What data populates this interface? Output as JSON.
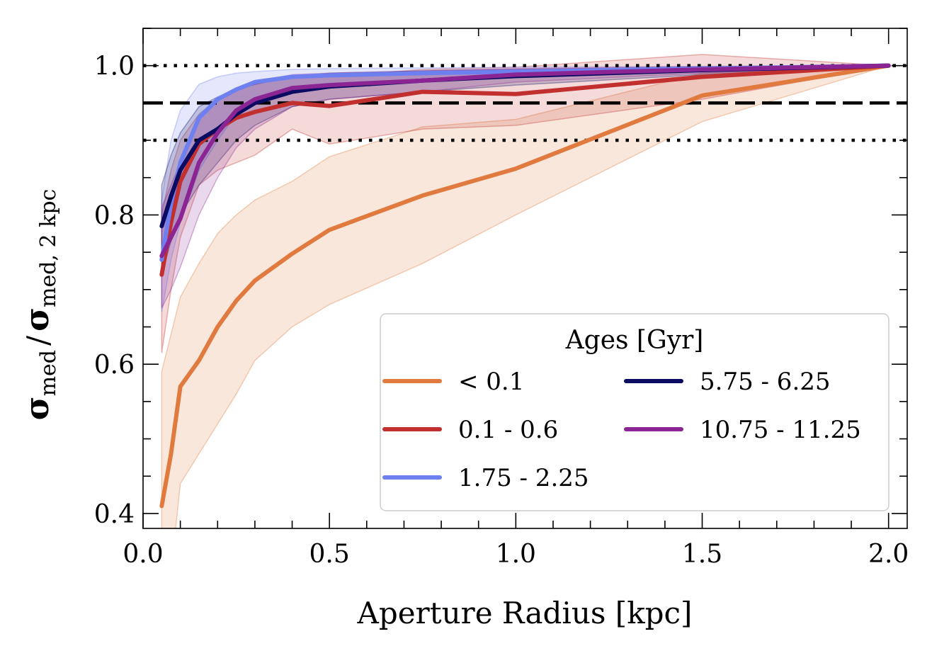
{
  "chart_data": {
    "type": "line",
    "xlabel": "Aperture Radius [kpc]",
    "ylabel": {
      "base": "σ",
      "num_sub": "med",
      "slash": "/",
      "den_sub": "med, 2 kpc"
    },
    "xlim": [
      0.0,
      2.05
    ],
    "ylim": [
      0.38,
      1.05
    ],
    "xticks": [
      "0.0",
      "0.5",
      "1.0",
      "1.5",
      "2.0"
    ],
    "xtick_values": [
      0.0,
      0.5,
      1.0,
      1.5,
      2.0
    ],
    "yticks": [
      "0.4",
      "0.6",
      "0.8",
      "1.0"
    ],
    "ytick_values": [
      0.4,
      0.6,
      0.8,
      1.0
    ],
    "grid": false,
    "reference_lines": [
      {
        "y": 1.0,
        "style": "dotted"
      },
      {
        "y": 0.95,
        "style": "dashed"
      },
      {
        "y": 0.9,
        "style": "dotted"
      }
    ],
    "x": [
      0.05,
      0.075,
      0.1,
      0.15,
      0.2,
      0.25,
      0.3,
      0.4,
      0.5,
      0.75,
      1.0,
      1.5,
      2.0
    ],
    "legend": {
      "title": "Ages [Gyr]",
      "position": "lower-right",
      "columns": 2
    },
    "series": [
      {
        "name": "< 0.1",
        "color": "#e07a3f",
        "values": [
          0.41,
          0.48,
          0.57,
          0.605,
          0.65,
          0.685,
          0.712,
          0.748,
          0.78,
          0.826,
          0.862,
          0.96,
          1.0
        ],
        "upper": [
          0.59,
          0.64,
          0.69,
          0.735,
          0.775,
          0.8,
          0.82,
          0.845,
          0.878,
          0.918,
          0.928,
          0.99,
          1.0
        ],
        "lower": [
          0.3,
          0.32,
          0.44,
          0.48,
          0.52,
          0.56,
          0.605,
          0.65,
          0.68,
          0.735,
          0.8,
          0.925,
          1.0
        ]
      },
      {
        "name": "0.1 - 0.6",
        "color": "#c1302f",
        "values": [
          0.72,
          0.79,
          0.845,
          0.895,
          0.915,
          0.93,
          0.938,
          0.95,
          0.946,
          0.965,
          0.962,
          0.985,
          1.0
        ],
        "upper": [
          0.8,
          0.86,
          0.9,
          0.935,
          0.955,
          0.968,
          0.975,
          0.985,
          0.985,
          0.995,
          0.998,
          1.015,
          1.0
        ],
        "lower": [
          0.615,
          0.7,
          0.77,
          0.84,
          0.86,
          0.87,
          0.88,
          0.915,
          0.895,
          0.915,
          0.92,
          0.955,
          1.0
        ]
      },
      {
        "name": "1.75 - 2.25",
        "color": "#6e7ff0",
        "values": [
          0.74,
          0.815,
          0.87,
          0.93,
          0.955,
          0.968,
          0.978,
          0.985,
          0.987,
          0.99,
          0.992,
          0.996,
          1.0
        ],
        "upper": [
          0.82,
          0.9,
          0.94,
          0.975,
          0.985,
          0.99,
          0.992,
          0.995,
          0.996,
          0.997,
          0.998,
          0.999,
          1.0
        ],
        "lower": [
          0.67,
          0.74,
          0.79,
          0.86,
          0.9,
          0.935,
          0.955,
          0.97,
          0.975,
          0.982,
          0.986,
          0.992,
          1.0
        ]
      },
      {
        "name": "5.75 - 6.25",
        "color": "#0b0b62",
        "values": [
          0.785,
          0.825,
          0.86,
          0.9,
          0.915,
          0.935,
          0.95,
          0.965,
          0.972,
          0.98,
          0.986,
          0.994,
          1.0
        ],
        "upper": [
          0.84,
          0.88,
          0.91,
          0.945,
          0.958,
          0.968,
          0.975,
          0.985,
          0.99,
          0.993,
          0.995,
          0.998,
          1.0
        ],
        "lower": [
          0.72,
          0.765,
          0.8,
          0.84,
          0.87,
          0.9,
          0.92,
          0.945,
          0.955,
          0.965,
          0.974,
          0.988,
          1.0
        ]
      },
      {
        "name": "10.75 - 11.25",
        "color": "#8b2593",
        "values": [
          0.745,
          0.77,
          0.795,
          0.87,
          0.91,
          0.94,
          0.955,
          0.97,
          0.974,
          0.98,
          0.988,
          0.995,
          1.0
        ],
        "upper": [
          0.81,
          0.84,
          0.87,
          0.93,
          0.955,
          0.97,
          0.978,
          0.988,
          0.99,
          0.993,
          0.996,
          0.999,
          1.0
        ],
        "lower": [
          0.675,
          0.7,
          0.73,
          0.8,
          0.85,
          0.89,
          0.915,
          0.945,
          0.955,
          0.965,
          0.978,
          0.99,
          1.0
        ]
      }
    ]
  }
}
